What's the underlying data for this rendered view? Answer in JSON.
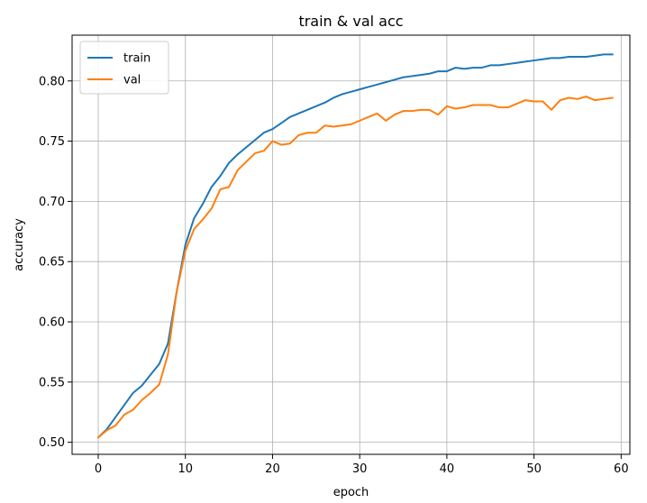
{
  "chart_data": {
    "type": "line",
    "title": "train & val acc",
    "xlabel": "epoch",
    "ylabel": "accuracy",
    "xlim": [
      -3,
      61
    ],
    "ylim": [
      0.49,
      0.838
    ],
    "xticks": [
      0,
      10,
      20,
      30,
      40,
      50,
      60
    ],
    "yticks": [
      0.5,
      0.55,
      0.6,
      0.65,
      0.7,
      0.75,
      0.8
    ],
    "xtick_labels": [
      "0",
      "10",
      "20",
      "30",
      "40",
      "50",
      "60"
    ],
    "ytick_labels": [
      "0.50",
      "0.55",
      "0.60",
      "0.65",
      "0.70",
      "0.75",
      "0.80"
    ],
    "grid": true,
    "legend_position": "top-left",
    "x": [
      0,
      1,
      2,
      3,
      4,
      5,
      6,
      7,
      8,
      9,
      10,
      11,
      12,
      13,
      14,
      15,
      16,
      17,
      18,
      19,
      20,
      21,
      22,
      23,
      24,
      25,
      26,
      27,
      28,
      29,
      30,
      31,
      32,
      33,
      34,
      35,
      36,
      37,
      38,
      39,
      40,
      41,
      42,
      43,
      44,
      45,
      46,
      47,
      48,
      49,
      50,
      51,
      52,
      53,
      54,
      55,
      56,
      57,
      58,
      59
    ],
    "series": [
      {
        "name": "train",
        "color": "#1f77b4",
        "values": [
          0.504,
          0.511,
          0.521,
          0.531,
          0.541,
          0.547,
          0.556,
          0.565,
          0.582,
          0.625,
          0.664,
          0.686,
          0.698,
          0.712,
          0.721,
          0.732,
          0.739,
          0.745,
          0.751,
          0.757,
          0.76,
          0.765,
          0.77,
          0.773,
          0.776,
          0.779,
          0.782,
          0.786,
          0.789,
          0.791,
          0.793,
          0.795,
          0.797,
          0.799,
          0.801,
          0.803,
          0.804,
          0.805,
          0.806,
          0.808,
          0.808,
          0.811,
          0.81,
          0.811,
          0.811,
          0.813,
          0.813,
          0.814,
          0.815,
          0.816,
          0.817,
          0.818,
          0.819,
          0.819,
          0.82,
          0.82,
          0.82,
          0.821,
          0.822,
          0.822
        ]
      },
      {
        "name": "val",
        "color": "#ff7f0e",
        "values": [
          0.504,
          0.51,
          0.514,
          0.523,
          0.527,
          0.535,
          0.541,
          0.548,
          0.573,
          0.625,
          0.659,
          0.677,
          0.685,
          0.694,
          0.71,
          0.712,
          0.726,
          0.733,
          0.74,
          0.742,
          0.75,
          0.747,
          0.748,
          0.755,
          0.757,
          0.757,
          0.763,
          0.762,
          0.763,
          0.764,
          0.767,
          0.77,
          0.773,
          0.767,
          0.772,
          0.775,
          0.775,
          0.776,
          0.776,
          0.772,
          0.779,
          0.777,
          0.778,
          0.78,
          0.78,
          0.78,
          0.778,
          0.778,
          0.781,
          0.784,
          0.783,
          0.783,
          0.776,
          0.784,
          0.786,
          0.785,
          0.787,
          0.784,
          0.785,
          0.786
        ]
      }
    ]
  }
}
